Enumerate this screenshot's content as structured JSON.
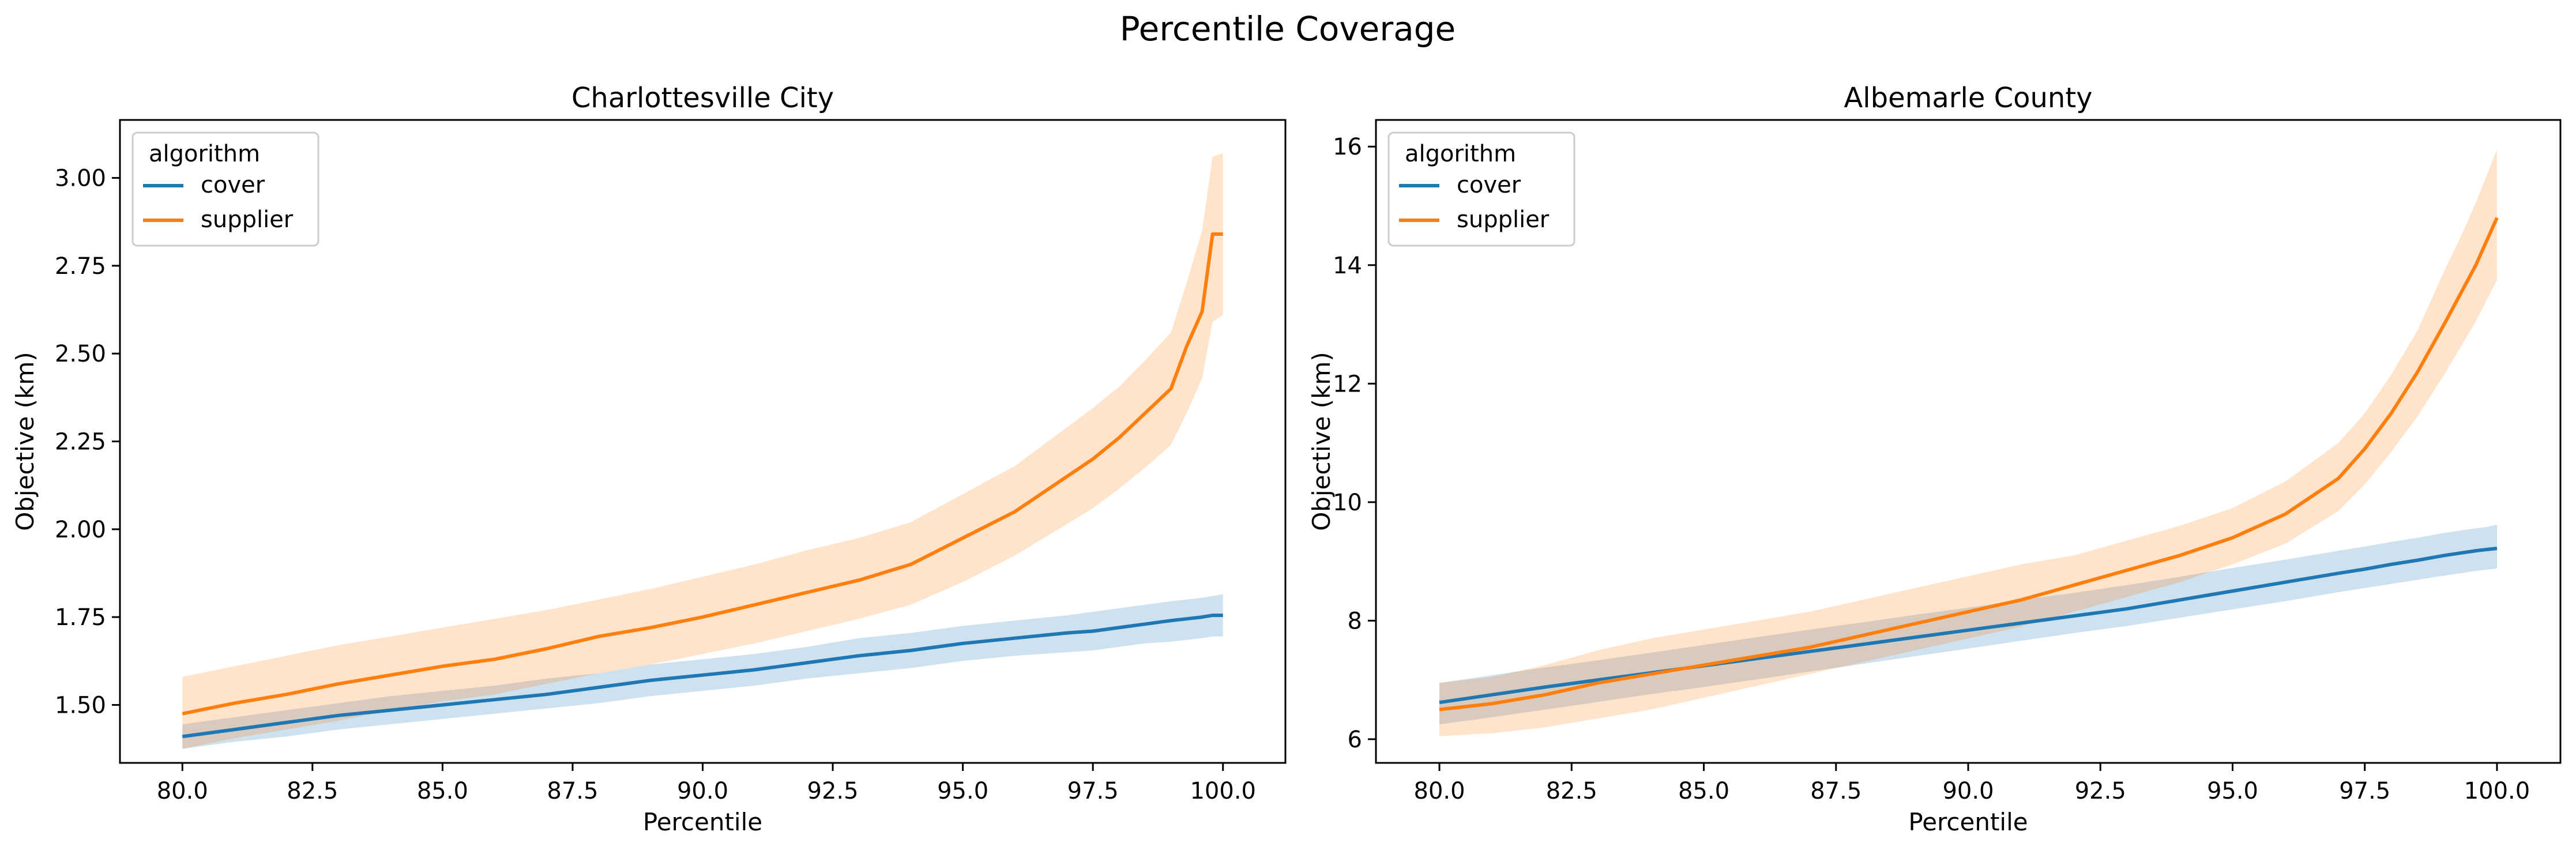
{
  "figure": {
    "suptitle": "Percentile Coverage"
  },
  "colors": {
    "cover": "#1f77b4",
    "supplier": "#ff7f0e",
    "axes": "#000000",
    "legend_border": "#cccccc"
  },
  "chart_data": [
    {
      "type": "line",
      "title": "Charlottesville City",
      "xlabel": "Percentile",
      "ylabel": "Objective (km)",
      "xlim": [
        78.8,
        101.2
      ],
      "ylim": [
        1.335,
        3.165
      ],
      "xticks": [
        80.0,
        82.5,
        85.0,
        87.5,
        90.0,
        92.5,
        95.0,
        97.5,
        100.0
      ],
      "xtick_labels": [
        "80.0",
        "82.5",
        "85.0",
        "87.5",
        "90.0",
        "92.5",
        "95.0",
        "97.5",
        "100.0"
      ],
      "yticks": [
        1.5,
        1.75,
        2.0,
        2.25,
        2.5,
        2.75,
        3.0
      ],
      "ytick_labels": [
        "1.50",
        "1.75",
        "2.00",
        "2.25",
        "2.50",
        "2.75",
        "3.00"
      ],
      "legend": {
        "title": "algorithm",
        "position": "top-left",
        "entries": [
          "cover",
          "supplier"
        ]
      },
      "x": [
        80,
        81,
        82,
        83,
        84,
        85,
        86,
        87,
        88,
        89,
        90,
        91,
        92,
        93,
        94,
        95,
        96,
        97,
        97.5,
        98,
        98.5,
        99,
        99.3,
        99.6,
        99.8,
        100
      ],
      "series": [
        {
          "name": "cover",
          "values": [
            1.41,
            1.43,
            1.45,
            1.47,
            1.485,
            1.5,
            1.515,
            1.53,
            1.55,
            1.57,
            1.585,
            1.6,
            1.62,
            1.64,
            1.655,
            1.675,
            1.69,
            1.705,
            1.71,
            1.72,
            1.73,
            1.74,
            1.745,
            1.75,
            1.755,
            1.755
          ],
          "lower": [
            1.375,
            1.395,
            1.41,
            1.43,
            1.445,
            1.46,
            1.475,
            1.49,
            1.505,
            1.525,
            1.54,
            1.555,
            1.575,
            1.59,
            1.605,
            1.625,
            1.64,
            1.65,
            1.655,
            1.665,
            1.675,
            1.68,
            1.685,
            1.69,
            1.695,
            1.695
          ],
          "upper": [
            1.445,
            1.465,
            1.485,
            1.505,
            1.525,
            1.54,
            1.555,
            1.575,
            1.59,
            1.615,
            1.63,
            1.645,
            1.665,
            1.69,
            1.705,
            1.725,
            1.74,
            1.755,
            1.765,
            1.775,
            1.785,
            1.795,
            1.8,
            1.805,
            1.81,
            1.815
          ]
        },
        {
          "name": "supplier",
          "values": [
            1.475,
            1.505,
            1.53,
            1.56,
            1.585,
            1.61,
            1.63,
            1.66,
            1.695,
            1.72,
            1.75,
            1.785,
            1.82,
            1.855,
            1.9,
            1.975,
            2.05,
            2.15,
            2.2,
            2.26,
            2.33,
            2.4,
            2.52,
            2.62,
            2.84,
            2.84
          ],
          "lower": [
            1.375,
            1.405,
            1.43,
            1.455,
            1.485,
            1.51,
            1.53,
            1.56,
            1.59,
            1.615,
            1.645,
            1.675,
            1.71,
            1.745,
            1.785,
            1.85,
            1.925,
            2.015,
            2.06,
            2.115,
            2.175,
            2.24,
            2.33,
            2.43,
            2.59,
            2.61
          ],
          "upper": [
            1.58,
            1.61,
            1.64,
            1.67,
            1.695,
            1.72,
            1.745,
            1.77,
            1.8,
            1.83,
            1.865,
            1.9,
            1.94,
            1.975,
            2.02,
            2.1,
            2.18,
            2.29,
            2.345,
            2.405,
            2.48,
            2.56,
            2.7,
            2.85,
            3.06,
            3.07
          ]
        }
      ]
    },
    {
      "type": "line",
      "title": "Albemarle County",
      "xlabel": "Percentile",
      "ylabel": "Objective (km)",
      "xlim": [
        78.8,
        101.2
      ],
      "ylim": [
        5.6,
        16.45
      ],
      "xticks": [
        80.0,
        82.5,
        85.0,
        87.5,
        90.0,
        92.5,
        95.0,
        97.5,
        100.0
      ],
      "xtick_labels": [
        "80.0",
        "82.5",
        "85.0",
        "87.5",
        "90.0",
        "92.5",
        "95.0",
        "97.5",
        "100.0"
      ],
      "yticks": [
        6,
        8,
        10,
        12,
        14,
        16
      ],
      "ytick_labels": [
        "6",
        "8",
        "10",
        "12",
        "14",
        "16"
      ],
      "legend": {
        "title": "algorithm",
        "position": "top-left",
        "entries": [
          "cover",
          "supplier"
        ]
      },
      "x": [
        80,
        81,
        82,
        83,
        84,
        85,
        86,
        87,
        88,
        89,
        90,
        91,
        92,
        93,
        94,
        95,
        96,
        97,
        97.5,
        98,
        98.5,
        99,
        99.3,
        99.6,
        99.8,
        100
      ],
      "series": [
        {
          "name": "cover",
          "values": [
            6.62,
            6.75,
            6.88,
            7.0,
            7.12,
            7.24,
            7.36,
            7.48,
            7.6,
            7.72,
            7.84,
            7.96,
            8.08,
            8.2,
            8.35,
            8.5,
            8.65,
            8.8,
            8.87,
            8.95,
            9.02,
            9.1,
            9.14,
            9.18,
            9.2,
            9.22
          ],
          "lower": [
            6.25,
            6.37,
            6.5,
            6.63,
            6.76,
            6.88,
            7.01,
            7.14,
            7.27,
            7.4,
            7.53,
            7.66,
            7.79,
            7.91,
            8.05,
            8.19,
            8.33,
            8.48,
            8.55,
            8.62,
            8.69,
            8.76,
            8.8,
            8.84,
            8.86,
            8.88
          ],
          "upper": [
            6.95,
            7.08,
            7.21,
            7.33,
            7.46,
            7.59,
            7.72,
            7.85,
            7.97,
            8.1,
            8.22,
            8.35,
            8.47,
            8.6,
            8.74,
            8.89,
            9.03,
            9.18,
            9.25,
            9.33,
            9.4,
            9.48,
            9.52,
            9.56,
            9.58,
            9.62
          ]
        },
        {
          "name": "supplier",
          "values": [
            6.5,
            6.6,
            6.75,
            6.95,
            7.1,
            7.25,
            7.4,
            7.55,
            7.75,
            7.95,
            8.15,
            8.35,
            8.6,
            8.85,
            9.1,
            9.4,
            9.8,
            10.4,
            10.9,
            11.5,
            12.2,
            13.0,
            13.5,
            14.0,
            14.4,
            14.8
          ],
          "lower": [
            6.05,
            6.1,
            6.2,
            6.35,
            6.5,
            6.7,
            6.9,
            7.1,
            7.3,
            7.5,
            7.7,
            7.9,
            8.15,
            8.4,
            8.65,
            8.95,
            9.3,
            9.85,
            10.3,
            10.85,
            11.45,
            12.15,
            12.6,
            13.05,
            13.4,
            13.75
          ],
          "upper": [
            6.95,
            7.05,
            7.25,
            7.5,
            7.7,
            7.85,
            8.0,
            8.15,
            8.35,
            8.55,
            8.75,
            8.95,
            9.1,
            9.35,
            9.6,
            9.9,
            10.35,
            11.0,
            11.5,
            12.15,
            12.9,
            13.9,
            14.45,
            15.05,
            15.5,
            15.95
          ]
        }
      ]
    }
  ]
}
